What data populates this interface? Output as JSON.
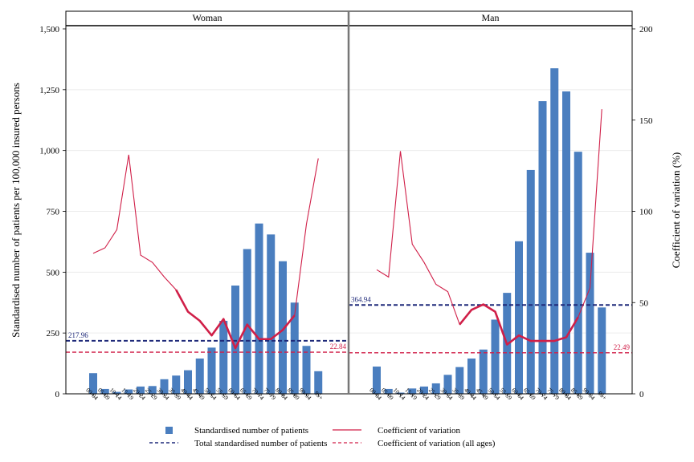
{
  "chart_data": {
    "type": "bar",
    "ylabel_left": "Standardised number of patients per 100,000 insured persons",
    "ylabel_right": "Coefficient of variation (%)",
    "ylim_left": [
      0,
      1500
    ],
    "yticks_left": [
      "0",
      "250",
      "500",
      "750",
      "1,000",
      "1,250",
      "1,500"
    ],
    "ylim_right": [
      0,
      200
    ],
    "yticks_right": [
      "0",
      "50",
      "100",
      "150",
      "200"
    ],
    "categories": [
      "00-04",
      "05-09",
      "10-14",
      "15-19",
      "20-24",
      "25-29",
      "30-34",
      "35-39",
      "40-44",
      "45-49",
      "50-54",
      "55-59",
      "60-64",
      "65-69",
      "70-74",
      "75-79",
      "80-84",
      "85-89",
      "90-94",
      "95+"
    ],
    "colors": {
      "bars": "#4a7ebf",
      "cv": "#d01f48",
      "total": "#1f2a7a",
      "cv_all": "#d01f48"
    },
    "panels": [
      {
        "title": "Woman",
        "bars": [
          85,
          20,
          8,
          18,
          30,
          32,
          60,
          75,
          97,
          145,
          190,
          300,
          445,
          595,
          700,
          655,
          545,
          375,
          197,
          93
        ],
        "cv": [
          77,
          80,
          90,
          131,
          76,
          72,
          64,
          57,
          45,
          40,
          32,
          41,
          25,
          38,
          30,
          30,
          35,
          43,
          93,
          129
        ],
        "total": 217.96,
        "total_label": "217.96",
        "cv_all": 22.84,
        "cv_all_label": "22.84"
      },
      {
        "title": "Man",
        "bars": [
          112,
          20,
          5,
          22,
          30,
          43,
          78,
          110,
          145,
          182,
          305,
          415,
          627,
          920,
          1203,
          1338,
          1243,
          995,
          580,
          355
        ],
        "cv": [
          68,
          64,
          133,
          82,
          72,
          60,
          56,
          38,
          46,
          49,
          45,
          27,
          32,
          29,
          29,
          29,
          31,
          42,
          58,
          156
        ],
        "total": 364.94,
        "total_label": "364.94",
        "cv_all": 22.49,
        "cv_all_label": "22.49"
      }
    ],
    "legend": [
      {
        "key": "bars",
        "label": "Standardised number of patients"
      },
      {
        "key": "cv",
        "label": "Coefficient of variation"
      },
      {
        "key": "total",
        "label": "Total standardised number of patients"
      },
      {
        "key": "cv_all",
        "label": "Coefficient of variation (all ages)"
      }
    ]
  }
}
